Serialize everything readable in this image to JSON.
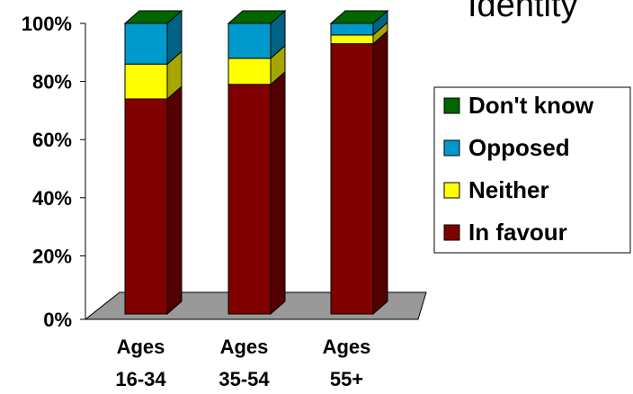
{
  "chart_data": {
    "type": "bar",
    "stacked": true,
    "title": "Identity",
    "categories": [
      "Ages 16-34",
      "Ages 35-54",
      "Ages 55+"
    ],
    "category_lines": [
      [
        "Ages",
        "16-34"
      ],
      [
        "Ages",
        "35-54"
      ],
      [
        "Ages",
        "55+"
      ]
    ],
    "series": [
      {
        "name": "In favour",
        "values": [
          74,
          79,
          93
        ],
        "color": "#800000"
      },
      {
        "name": "Neither",
        "values": [
          12,
          9,
          3
        ],
        "color": "#ffff00"
      },
      {
        "name": "Opposed",
        "values": [
          14,
          12,
          4
        ],
        "color": "#0099cc"
      },
      {
        "name": "Don't know",
        "values": [
          0,
          0,
          0
        ],
        "color": "#006600"
      }
    ],
    "legend_order": [
      "Don't know",
      "Opposed",
      "Neither",
      "In favour"
    ],
    "ylim": [
      0,
      100
    ],
    "yticks": [
      "0%",
      "20%",
      "40%",
      "60%",
      "80%",
      "100%"
    ],
    "ytick_values": [
      0,
      20,
      40,
      60,
      80,
      100
    ],
    "grid": false,
    "legend_position": "right",
    "floor_color": "#999999"
  }
}
